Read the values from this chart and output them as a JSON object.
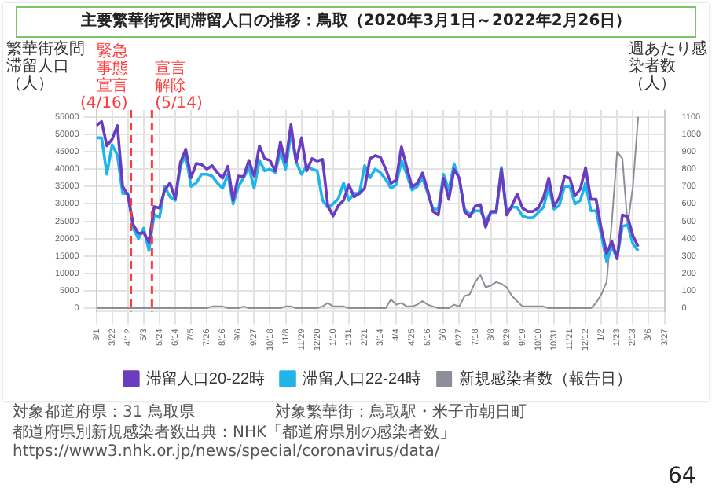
{
  "chart_data": {
    "type": "line",
    "title": "主要繁華街夜間滞留人口の推移：鳥取（2020年3月1日～2022年2月26日）",
    "ylabel": "繁華街夜間滞留人口（人）",
    "y2label": "週あたり感染者数（人）",
    "x": [
      "2020-03-01",
      "2020-03-08",
      "2020-03-15",
      "2020-03-22",
      "2020-03-29",
      "2020-04-05",
      "2020-04-12",
      "2020-04-19",
      "2020-04-26",
      "2020-05-03",
      "2020-05-10",
      "2020-05-17",
      "2020-05-24",
      "2020-05-31",
      "2020-06-07",
      "2020-06-14",
      "2020-06-21",
      "2020-06-28",
      "2020-07-05",
      "2020-07-12",
      "2020-07-19",
      "2020-07-26",
      "2020-08-02",
      "2020-08-09",
      "2020-08-16",
      "2020-08-23",
      "2020-08-30",
      "2020-09-06",
      "2020-09-13",
      "2020-09-20",
      "2020-09-27",
      "2020-10-04",
      "2020-10-11",
      "2020-10-18",
      "2020-10-25",
      "2020-11-01",
      "2020-11-08",
      "2020-11-15",
      "2020-11-22",
      "2020-11-29",
      "2020-12-06",
      "2020-12-13",
      "2020-12-20",
      "2020-12-27",
      "2021-01-03",
      "2021-01-10",
      "2021-01-17",
      "2021-01-24",
      "2021-01-31",
      "2021-02-07",
      "2021-02-14",
      "2021-02-21",
      "2021-02-28",
      "2021-03-07",
      "2021-03-14",
      "2021-03-21",
      "2021-03-28",
      "2021-04-04",
      "2021-04-11",
      "2021-04-18",
      "2021-04-25",
      "2021-05-02",
      "2021-05-09",
      "2021-05-16",
      "2021-05-23",
      "2021-05-30",
      "2021-06-06",
      "2021-06-13",
      "2021-06-20",
      "2021-06-27",
      "2021-07-04",
      "2021-07-11",
      "2021-07-18",
      "2021-07-25",
      "2021-08-01",
      "2021-08-08",
      "2021-08-15",
      "2021-08-22",
      "2021-08-29",
      "2021-09-05",
      "2021-09-12",
      "2021-09-19",
      "2021-09-26",
      "2021-10-03",
      "2021-10-10",
      "2021-10-17",
      "2021-10-24",
      "2021-10-31",
      "2021-11-07",
      "2021-11-14",
      "2021-11-21",
      "2021-11-28",
      "2021-12-05",
      "2021-12-12",
      "2021-12-19",
      "2021-12-26",
      "2022-01-02",
      "2022-01-09",
      "2022-01-16",
      "2022-01-23",
      "2022-01-30",
      "2022-02-06",
      "2022-02-13",
      "2022-02-20"
    ],
    "xlim": [
      "2020-03-01",
      "2022-03-27"
    ],
    "xticks": [
      {
        "value": "2020-03-01",
        "label": "3/1"
      },
      {
        "value": "2020-03-22",
        "label": "3/22"
      },
      {
        "value": "2020-04-12",
        "label": "4/12"
      },
      {
        "value": "2020-05-03",
        "label": "5/3"
      },
      {
        "value": "2020-05-24",
        "label": "5/24"
      },
      {
        "value": "2020-06-14",
        "label": "6/14"
      },
      {
        "value": "2020-07-05",
        "label": "7/5"
      },
      {
        "value": "2020-07-26",
        "label": "7/26"
      },
      {
        "value": "2020-08-16",
        "label": "8/16"
      },
      {
        "value": "2020-09-06",
        "label": "9/6"
      },
      {
        "value": "2020-09-27",
        "label": "9/27"
      },
      {
        "value": "2020-10-18",
        "label": "10/18"
      },
      {
        "value": "2020-11-08",
        "label": "11/8"
      },
      {
        "value": "2020-11-29",
        "label": "11/29"
      },
      {
        "value": "2020-12-20",
        "label": "12/20"
      },
      {
        "value": "2021-01-10",
        "label": "1/10"
      },
      {
        "value": "2021-01-31",
        "label": "1/31"
      },
      {
        "value": "2021-02-21",
        "label": "2/21"
      },
      {
        "value": "2021-03-14",
        "label": "3/14"
      },
      {
        "value": "2021-04-04",
        "label": "4/4"
      },
      {
        "value": "2021-04-25",
        "label": "4/25"
      },
      {
        "value": "2021-05-16",
        "label": "5/16"
      },
      {
        "value": "2021-06-06",
        "label": "6/6"
      },
      {
        "value": "2021-06-27",
        "label": "6/27"
      },
      {
        "value": "2021-07-18",
        "label": "7/18"
      },
      {
        "value": "2021-08-08",
        "label": "8/8"
      },
      {
        "value": "2021-08-29",
        "label": "8/29"
      },
      {
        "value": "2021-09-19",
        "label": "9/19"
      },
      {
        "value": "2021-10-10",
        "label": "10/10"
      },
      {
        "value": "2021-10-31",
        "label": "10/31"
      },
      {
        "value": "2021-11-21",
        "label": "11/21"
      },
      {
        "value": "2021-12-12",
        "label": "12/12"
      },
      {
        "value": "2022-01-02",
        "label": "1/2"
      },
      {
        "value": "2022-01-23",
        "label": "1/23"
      },
      {
        "value": "2022-02-13",
        "label": "2/13"
      },
      {
        "value": "2022-03-06",
        "label": "3/6"
      },
      {
        "value": "2022-03-27",
        "label": "3/27"
      }
    ],
    "ylim": [
      -1000,
      57000
    ],
    "yticks": [
      0,
      5000,
      10000,
      15000,
      20000,
      25000,
      30000,
      35000,
      40000,
      45000,
      50000,
      55000
    ],
    "y2lim": [
      -20,
      1140
    ],
    "y2ticks": [
      0,
      100,
      200,
      300,
      400,
      500,
      600,
      700,
      800,
      900,
      1000,
      1100
    ],
    "grid": true,
    "legend": "bottom",
    "marker": "none",
    "line_style": "solid",
    "series": [
      {
        "name": "滞留人口20-22時",
        "color": "#6a3dc0",
        "values": [
          52500,
          53700,
          46700,
          48600,
          52500,
          35000,
          32500,
          24000,
          21500,
          21700,
          19000,
          29200,
          28800,
          34000,
          36000,
          31500,
          42000,
          45700,
          37500,
          41600,
          41300,
          40000,
          41000,
          39000,
          37400,
          40800,
          31000,
          38000,
          37800,
          42500,
          38000,
          46700,
          43000,
          42500,
          39500,
          47800,
          42000,
          52800,
          42000,
          49000,
          39500,
          43000,
          42300,
          42800,
          29500,
          26500,
          29500,
          31000,
          35500,
          32000,
          33000,
          34500,
          43000,
          43900,
          43400,
          40000,
          35900,
          36900,
          46400,
          40500,
          34900,
          35900,
          38900,
          33800,
          27800,
          26800,
          37400,
          31300,
          39900,
          37400,
          27800,
          26300,
          29300,
          29800,
          23300,
          27800,
          27800,
          39900,
          26800,
          29500,
          32800,
          28800,
          27800,
          27800,
          28800,
          31800,
          37400,
          29300,
          31800,
          37900,
          37400,
          32300,
          34300,
          40400,
          31300,
          31300,
          22800,
          15700,
          19200,
          14200,
          26800,
          26300,
          20800,
          17700
        ]
      },
      {
        "name": "滞留人口22-24時",
        "color": "#1fb5ea",
        "values": [
          49000,
          49000,
          38500,
          47000,
          44000,
          33000,
          33000,
          23000,
          20000,
          23000,
          16500,
          27000,
          26000,
          35000,
          32000,
          31000,
          41000,
          44000,
          35000,
          36000,
          38500,
          38500,
          38000,
          36000,
          34500,
          38500,
          30000,
          35000,
          37500,
          40500,
          34500,
          42500,
          39500,
          40000,
          39000,
          45000,
          40000,
          50500,
          42000,
          38500,
          41000,
          40000,
          39500,
          31000,
          29000,
          30000,
          31500,
          36000,
          31000,
          33000,
          33000,
          41000,
          37500,
          40000,
          39000,
          37000,
          34500,
          35500,
          42500,
          38500,
          34000,
          35000,
          37500,
          33000,
          28500,
          28500,
          38500,
          34000,
          41500,
          37000,
          28500,
          27000,
          28000,
          28000,
          25000,
          27500,
          27500,
          40500,
          27500,
          29000,
          29000,
          26500,
          26000,
          26000,
          27500,
          29000,
          35000,
          28500,
          29500,
          35000,
          35000,
          30000,
          31000,
          36000,
          28000,
          28000,
          21000,
          13500,
          17500,
          14500,
          23500,
          24000,
          18500,
          16500
        ]
      },
      {
        "name": "新規感染者数（報告日）",
        "color": "#8a8f99",
        "axis": "y2",
        "values": [
          0,
          0,
          0,
          0,
          0,
          0,
          0,
          0,
          0,
          0,
          0,
          0,
          0,
          0,
          0,
          0,
          0,
          0,
          0,
          0,
          0,
          0,
          10,
          10,
          10,
          0,
          0,
          0,
          10,
          0,
          0,
          0,
          0,
          0,
          0,
          0,
          10,
          10,
          0,
          0,
          0,
          0,
          0,
          10,
          30,
          10,
          10,
          10,
          0,
          0,
          0,
          0,
          0,
          0,
          0,
          0,
          50,
          20,
          30,
          10,
          10,
          20,
          40,
          20,
          10,
          0,
          0,
          0,
          20,
          10,
          70,
          80,
          150,
          190,
          120,
          130,
          150,
          140,
          120,
          70,
          40,
          10,
          10,
          10,
          10,
          10,
          0,
          0,
          0,
          0,
          0,
          0,
          0,
          0,
          0,
          30,
          80,
          150,
          500,
          900,
          860,
          480,
          700,
          1100
        ]
      }
    ],
    "ref_lines": [
      {
        "axis": "x",
        "value": "2020-04-16",
        "label": "緊急事態宣言(4/16)",
        "color": "#ff3b3b",
        "line_style": "dashed"
      },
      {
        "axis": "x",
        "value": "2020-05-14",
        "label": "宣言解除(5/14)",
        "color": "#ff3b3b",
        "line_style": "dashed"
      }
    ],
    "annotations": [
      "対象都道府県：31 鳥取県",
      "対象繁華街：鳥取駅・米子市朝日町",
      "都道府県別新規感染者数出典：NHK「都道府県別の感染者数」https://www3.nhk.or.jp/news/special/coronavirus/data/",
      "64"
    ]
  }
}
